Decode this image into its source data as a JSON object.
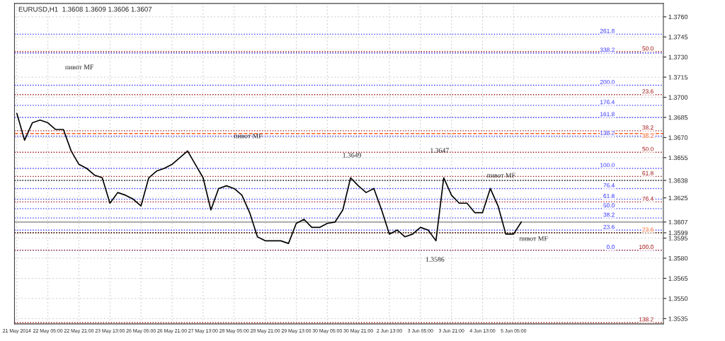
{
  "chart_data": {
    "type": "line",
    "title": "EURUSD,H1  1.3608 1.3609 1.3606 1.3607",
    "categories": [
      "21 May 2014",
      null,
      null,
      null,
      "22 May 05:00",
      null,
      null,
      null,
      "22 May 21:00",
      null,
      null,
      null,
      "23 May 13:00",
      null,
      null,
      null,
      "26 May 05:00",
      null,
      null,
      null,
      "26 May 21:00",
      null,
      null,
      null,
      "27 May 13:00",
      null,
      null,
      null,
      "28 May 05:00",
      null,
      null,
      null,
      "28 May 21:00",
      null,
      null,
      null,
      "29 May 13:00",
      null,
      null,
      null,
      "30 May 05:00",
      null,
      null,
      null,
      "30 May 21:00",
      null,
      null,
      null,
      "2 Jun 13:00",
      null,
      null,
      null,
      "3 Jun 05:00",
      null,
      null,
      null,
      "3 Jun 21:00",
      null,
      null,
      null,
      "4 Jun 13:00",
      null,
      null,
      null,
      "5 Jun 05:00",
      null,
      null,
      null,
      null,
      null,
      null,
      null,
      null,
      null,
      null,
      null,
      null,
      null,
      null,
      null,
      null,
      null,
      null,
      null
    ],
    "series": [
      {
        "color": "#000000",
        "values": [
          1.3688,
          1.3668,
          1.3681,
          1.3683,
          1.3681,
          1.3676,
          1.3676,
          1.366,
          1.365,
          1.3647,
          1.3642,
          1.364,
          1.3621,
          1.3629,
          1.3627,
          1.3624,
          1.3619,
          1.364,
          1.3645,
          1.3647,
          1.365,
          1.3655,
          1.366,
          1.365,
          1.364,
          1.3616,
          1.3632,
          1.3634,
          1.3632,
          1.3627,
          1.3614,
          1.3596,
          1.3593,
          1.3593,
          1.3593,
          1.3591,
          1.3606,
          1.3609,
          1.3603,
          1.3603,
          1.3606,
          1.3607,
          1.3616,
          1.364,
          1.3634,
          1.3629,
          1.3632,
          1.3616,
          1.3598,
          1.3601,
          1.3596,
          1.3598,
          1.3603,
          1.3601,
          1.3593,
          1.364,
          1.3627,
          1.3621,
          1.3621,
          1.3614,
          1.3614,
          1.3632,
          1.3619,
          1.3598,
          1.3598,
          1.3607,
          null,
          null,
          null,
          null,
          null,
          null,
          null,
          null,
          null,
          null,
          null,
          null,
          null,
          null,
          null,
          null,
          null,
          null
        ]
      }
    ],
    "ylim": [
      1.3531,
      1.377
    ],
    "yticks": [
      1.3535,
      {
        "value": 1.355,
        "label": "1.3550"
      },
      1.3565,
      {
        "value": 1.358,
        "label": "1.3580"
      },
      1.3595,
      1.3599,
      1.3607,
      1.3625,
      1.3638,
      1.3655,
      {
        "value": 1.367,
        "label": "1.3670"
      },
      1.3685,
      {
        "value": 1.37,
        "label": "1.3700"
      },
      1.3715,
      {
        "value": 1.373,
        "label": "1.3730"
      },
      1.3745,
      {
        "value": 1.376,
        "label": "1.3760"
      }
    ],
    "grid": true,
    "line_style": "solid",
    "ref_lines": [
      {
        "axis": "y",
        "value": 1.3586,
        "color": "#3333ff",
        "line_style": "dotted"
      },
      {
        "axis": "y",
        "value": 1.3601,
        "color": "#3333ff",
        "line_style": "dotted"
      },
      {
        "axis": "y",
        "value": 1.361,
        "color": "#3333ff",
        "line_style": "dotted"
      },
      {
        "axis": "y",
        "value": 1.3617,
        "color": "#3333ff",
        "line_style": "dotted"
      },
      {
        "axis": "y",
        "value": 1.3624,
        "color": "#3333ff",
        "line_style": "dotted"
      },
      {
        "axis": "y",
        "value": 1.3632,
        "color": "#3333ff",
        "line_style": "dotted"
      },
      {
        "axis": "y",
        "value": 1.3647,
        "color": "#3333ff",
        "line_style": "dotted"
      },
      {
        "axis": "y",
        "value": 1.3671,
        "color": "#3333ff",
        "line_style": "dotted"
      },
      {
        "axis": "y",
        "value": 1.3685,
        "color": "#3333ff",
        "line_style": "dotted"
      },
      {
        "axis": "y",
        "value": 1.3694,
        "color": "#3333ff",
        "line_style": "dotted"
      },
      {
        "axis": "y",
        "value": 1.3709,
        "color": "#3333ff",
        "line_style": "dotted"
      },
      {
        "axis": "y",
        "value": 1.3733,
        "color": "#3333ff",
        "line_style": "dotted"
      },
      {
        "axis": "y",
        "value": 1.3747,
        "color": "#3333ff",
        "line_style": "dotted"
      },
      {
        "axis": "y",
        "value": 1.3586,
        "color": "#a01010",
        "line_style": "dotted"
      },
      {
        "axis": "y",
        "value": 1.3599,
        "color": "#ff6020",
        "line_style": "dotted"
      },
      {
        "axis": "y",
        "value": 1.3622,
        "color": "#a01010",
        "line_style": "dotted"
      },
      {
        "axis": "y",
        "value": 1.3641,
        "color": "#a01010",
        "line_style": "dotted"
      },
      {
        "axis": "y",
        "value": 1.3659,
        "color": "#a01010",
        "line_style": "dotted"
      },
      {
        "axis": "y",
        "value": 1.3673,
        "color": "#ff6020",
        "line_style": "dashed"
      },
      {
        "axis": "y",
        "value": 1.3675,
        "color": "#a01010",
        "line_style": "dotted"
      },
      {
        "axis": "y",
        "value": 1.3702,
        "color": "#a01010",
        "line_style": "dotted"
      },
      {
        "axis": "y",
        "value": 1.3734,
        "color": "#a01010",
        "line_style": "dotted"
      },
      {
        "axis": "y",
        "value": 1.3532,
        "color": "#a01010",
        "line_style": "dotted"
      },
      {
        "axis": "y",
        "value": 1.3638,
        "color": "#000000",
        "line_style": "dotted"
      },
      {
        "axis": "y",
        "value": 1.3599,
        "color": "#000000",
        "line_style": "dotted"
      },
      {
        "axis": "y",
        "value": 1.3607,
        "color": "#808080",
        "line_style": "solid"
      }
    ],
    "annotations": [
      {
        "text": "0.0",
        "y": 1.3586
      },
      {
        "text": "23.6",
        "y": 1.3601
      },
      {
        "text": "38.2",
        "y": 1.361
      },
      {
        "text": "50.0",
        "y": 1.3617
      },
      {
        "text": "61.8",
        "y": 1.3624
      },
      {
        "text": "76.4",
        "y": 1.3632
      },
      {
        "text": "100.0",
        "y": 1.3647
      },
      {
        "text": "138.2",
        "y": 1.3671
      },
      {
        "text": "161.8",
        "y": 1.3685
      },
      {
        "text": "176.4",
        "y": 1.3694
      },
      {
        "text": "200.0",
        "y": 1.3709
      },
      {
        "text": "338.2",
        "y": 1.3733
      },
      {
        "text": "261.8",
        "y": 1.3747
      },
      {
        "text": "100.0",
        "y": 1.3586
      },
      {
        "text": "23.6",
        "y": 1.3599
      },
      {
        "text": "76.4",
        "y": 1.3622
      },
      {
        "text": "61.8",
        "y": 1.3641
      },
      {
        "text": "50.0",
        "y": 1.3659
      },
      {
        "text": "38.2",
        "y": 1.3673
      },
      {
        "text": "38.2",
        "y": 1.3675
      },
      {
        "text": "23.6",
        "y": 1.3702
      },
      {
        "text": "50.0",
        "y": 1.3734
      },
      {
        "text": "138.2",
        "y": 1.3532
      },
      "пивот MF",
      "пивот MF",
      "1.3649",
      "1.3647",
      "пивот MF",
      "пивот MF",
      "1.3586"
    ]
  }
}
